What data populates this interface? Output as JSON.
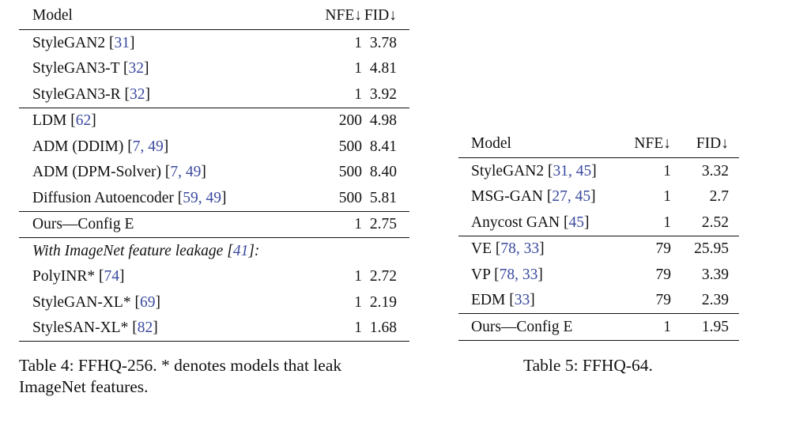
{
  "table4": {
    "headers": {
      "model": "Model",
      "nfe": "NFE↓",
      "fid": "FID↓"
    },
    "groups": [
      {
        "rows": [
          {
            "name": "StyleGAN2",
            "cites": "31",
            "nfe": "1",
            "fid": "3.78"
          },
          {
            "name": "StyleGAN3-T",
            "cites": "32",
            "nfe": "1",
            "fid": "4.81"
          },
          {
            "name": "StyleGAN3-R",
            "cites": "32",
            "nfe": "1",
            "fid": "3.92"
          }
        ]
      },
      {
        "rows": [
          {
            "name": "LDM",
            "cites": "62",
            "nfe": "200",
            "fid": "4.98"
          },
          {
            "name": "ADM (DDIM)",
            "cites": "7, 49",
            "nfe": "500",
            "fid": "8.41"
          },
          {
            "name": "ADM (DPM-Solver)",
            "cites": "7, 49",
            "nfe": "500",
            "fid": "8.40"
          },
          {
            "name": "Diffusion Autoencoder",
            "cites": "59, 49",
            "nfe": "500",
            "fid": "5.81"
          }
        ]
      },
      {
        "rows": [
          {
            "name": "Ours—Config E",
            "cites": "",
            "nfe": "1",
            "fid": "2.75"
          }
        ]
      }
    ],
    "leakage_heading": {
      "text": "With ImageNet feature leakage",
      "cite": "41",
      "suffix": ":"
    },
    "leakage_rows": [
      {
        "name": "PolyINR*",
        "cites": "74",
        "nfe": "1",
        "fid": "2.72"
      },
      {
        "name": "StyleGAN-XL*",
        "cites": "69",
        "nfe": "1",
        "fid": "2.19"
      },
      {
        "name": "StyleSAN-XL*",
        "cites": "82",
        "nfe": "1",
        "fid": "1.68"
      }
    ],
    "caption_line1": "Table 4:  FFHQ-256.  * denotes models that leak",
    "caption_line2": "ImageNet features."
  },
  "table5": {
    "headers": {
      "model": "Model",
      "nfe": "NFE↓",
      "fid": "FID↓"
    },
    "groups": [
      {
        "rows": [
          {
            "name": "StyleGAN2",
            "cites": "31, 45",
            "nfe": "1",
            "fid": "3.32"
          },
          {
            "name": "MSG-GAN",
            "cites": "27, 45",
            "nfe": "1",
            "fid": "2.7"
          },
          {
            "name": "Anycost GAN",
            "cites": "45",
            "nfe": "1",
            "fid": "2.52"
          }
        ]
      },
      {
        "rows": [
          {
            "name": "VE",
            "cites": "78, 33",
            "nfe": "79",
            "fid": "25.95"
          },
          {
            "name": "VP",
            "cites": "78, 33",
            "nfe": "79",
            "fid": "3.39"
          },
          {
            "name": "EDM",
            "cites": "33",
            "nfe": "79",
            "fid": "2.39"
          }
        ]
      },
      {
        "rows": [
          {
            "name": "Ours—Config E",
            "cites": "",
            "nfe": "1",
            "fid": "1.95"
          }
        ]
      }
    ],
    "caption": "Table 5: FFHQ-64."
  },
  "colors": {
    "text": "#111111",
    "citation": "#3b4a9e",
    "rule": "#111111"
  }
}
